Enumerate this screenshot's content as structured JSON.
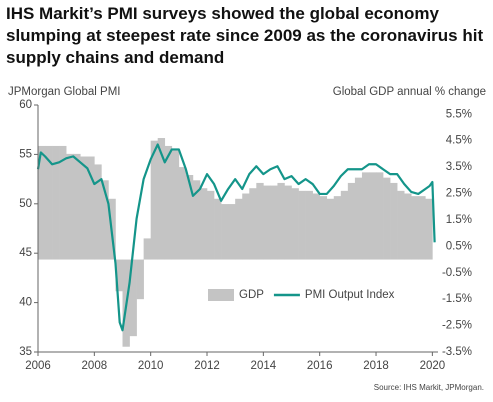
{
  "chart_data": {
    "type": "line",
    "title": "IHS Markit’s PMI surveys showed the global economy slumping at steepest rate since 2009 as the coronavirus hit supply chains and demand",
    "y_label": "JPMorgan Global PMI",
    "y2_label": "Global GDP annual % change",
    "source": "Source: IHS Markit, JPMorgan.",
    "xlim": [
      2006,
      2020.2
    ],
    "xticks": [
      2006,
      2008,
      2010,
      2012,
      2014,
      2016,
      2018,
      2020
    ],
    "ylim": [
      35,
      60
    ],
    "yticks": [
      35,
      40,
      45,
      50,
      55,
      60
    ],
    "y2lim": [
      -3.5,
      5.85
    ],
    "y2ticks": [
      {
        "value": -3.5,
        "label": "-3.5%"
      },
      {
        "value": -2.5,
        "label": "-2.5%"
      },
      {
        "value": -1.5,
        "label": "-1.5%"
      },
      {
        "value": -0.5,
        "label": "-0.5%"
      },
      {
        "value": 0.5,
        "label": "0.5%"
      },
      {
        "value": 1.5,
        "label": "1.5%"
      },
      {
        "value": 2.5,
        "label": "2.5%"
      },
      {
        "value": 3.5,
        "label": "3.5%"
      },
      {
        "value": 4.5,
        "label": "4.5%"
      },
      {
        "value": 5.5,
        "label": "5.5%"
      }
    ],
    "series": [
      {
        "name": "GDP",
        "type": "area",
        "axis": "y2",
        "color": "#c4c4c4",
        "x": [
          2006.0,
          2006.25,
          2006.5,
          2006.75,
          2007.0,
          2007.25,
          2007.5,
          2007.75,
          2008.0,
          2008.25,
          2008.5,
          2008.75,
          2009.0,
          2009.25,
          2009.5,
          2009.75,
          2010.0,
          2010.25,
          2010.5,
          2010.75,
          2011.0,
          2011.25,
          2011.5,
          2011.75,
          2012.0,
          2012.25,
          2012.5,
          2012.75,
          2013.0,
          2013.25,
          2013.5,
          2013.75,
          2014.0,
          2014.25,
          2014.5,
          2014.75,
          2015.0,
          2015.25,
          2015.5,
          2015.75,
          2016.0,
          2016.25,
          2016.5,
          2016.75,
          2017.0,
          2017.25,
          2017.5,
          2017.75,
          2018.0,
          2018.25,
          2018.5,
          2018.75,
          2019.0,
          2019.25,
          2019.5,
          2019.75
        ],
        "values": [
          4.3,
          4.3,
          4.3,
          4.3,
          4.0,
          4.0,
          3.9,
          3.9,
          3.6,
          3.0,
          2.3,
          -1.2,
          -3.3,
          -2.9,
          -1.5,
          0.8,
          4.5,
          4.6,
          4.3,
          4.2,
          3.5,
          3.2,
          3.0,
          2.7,
          2.6,
          2.3,
          2.1,
          2.1,
          2.3,
          2.5,
          2.7,
          2.9,
          2.8,
          2.8,
          2.9,
          2.8,
          2.7,
          2.6,
          2.6,
          2.5,
          2.4,
          2.3,
          2.4,
          2.6,
          2.9,
          3.1,
          3.3,
          3.3,
          3.3,
          3.1,
          2.9,
          2.6,
          2.5,
          2.4,
          2.4,
          2.3
        ]
      },
      {
        "name": "PMI Output Index",
        "type": "line",
        "axis": "y",
        "color": "#14958a",
        "x": [
          2006.0,
          2006.1,
          2006.25,
          2006.5,
          2006.75,
          2007.0,
          2007.25,
          2007.5,
          2007.75,
          2008.0,
          2008.25,
          2008.5,
          2008.75,
          2008.9,
          2009.0,
          2009.25,
          2009.5,
          2009.75,
          2010.0,
          2010.25,
          2010.5,
          2010.75,
          2011.0,
          2011.25,
          2011.5,
          2011.75,
          2012.0,
          2012.25,
          2012.5,
          2012.75,
          2013.0,
          2013.25,
          2013.5,
          2013.75,
          2014.0,
          2014.25,
          2014.5,
          2014.75,
          2015.0,
          2015.25,
          2015.5,
          2015.75,
          2016.0,
          2016.25,
          2016.5,
          2016.75,
          2017.0,
          2017.25,
          2017.5,
          2017.75,
          2018.0,
          2018.25,
          2018.5,
          2018.75,
          2019.0,
          2019.25,
          2019.5,
          2019.75,
          2019.9,
          2020.0,
          2020.08
        ],
        "values": [
          53.5,
          55.2,
          54.8,
          54.0,
          54.2,
          54.6,
          54.8,
          54.2,
          53.6,
          52.0,
          52.5,
          50.0,
          44.0,
          38.0,
          37.2,
          42.0,
          48.5,
          52.5,
          54.5,
          56.0,
          54.2,
          55.5,
          55.5,
          53.5,
          50.8,
          51.5,
          53.0,
          52.0,
          50.3,
          51.5,
          52.5,
          51.5,
          53.0,
          53.8,
          53.0,
          53.5,
          53.8,
          52.5,
          52.8,
          52.0,
          52.5,
          52.0,
          51.0,
          51.0,
          51.8,
          52.8,
          53.5,
          53.5,
          53.5,
          54.0,
          54.0,
          53.5,
          53.0,
          53.0,
          52.0,
          51.2,
          51.0,
          51.5,
          51.8,
          52.2,
          46.1
        ]
      }
    ]
  }
}
